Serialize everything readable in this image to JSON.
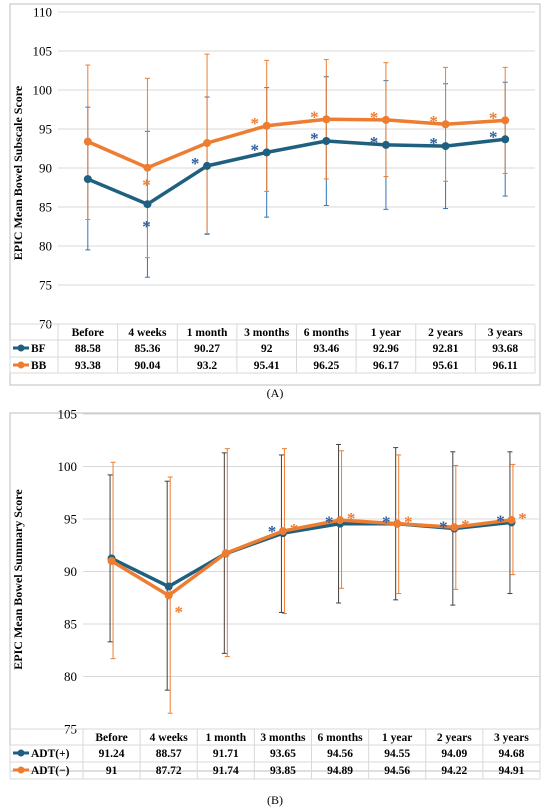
{
  "colors": {
    "series_a": "#1f5f7f",
    "series_b": "#ed7d31",
    "err_a": "#2e75b6",
    "err_a_b": "#404040",
    "err_b": "#ed7d31",
    "star_a": "#2e5f9e",
    "star_b": "#ed7d31"
  },
  "chart_data": [
    {
      "type": "line",
      "panel_label": "(A)",
      "ylabel": "EPIC Mean Bowel Subscale Score",
      "ylim": [
        70,
        110
      ],
      "yticks": [
        70,
        75,
        80,
        85,
        90,
        95,
        100,
        105,
        110
      ],
      "categories": [
        "Before",
        "4 weeks",
        "1 month",
        "3 months",
        "6 months",
        "1 year",
        "2 years",
        "3 years"
      ],
      "series": [
        {
          "name": "BF",
          "values": [
            88.58,
            85.36,
            90.27,
            92,
            93.46,
            92.96,
            92.81,
            93.68
          ],
          "labels": [
            "88.58",
            "85.36",
            "90.27",
            "92",
            "93.46",
            "92.96",
            "92.81",
            "93.68"
          ],
          "err_low": [
            79.5,
            76,
            81.5,
            83.7,
            85.2,
            84.7,
            84.8,
            86.4
          ],
          "err_high": [
            97.8,
            94.7,
            99.1,
            100.3,
            101.7,
            101.2,
            100.8,
            101
          ],
          "significant": [
            false,
            true,
            true,
            true,
            true,
            true,
            true,
            true
          ],
          "star_side": "left"
        },
        {
          "name": "BB",
          "values": [
            93.38,
            90.04,
            93.2,
            95.41,
            96.25,
            96.17,
            95.61,
            96.11
          ],
          "labels": [
            "93.38",
            "90.04",
            "93.2",
            "95.41",
            "96.25",
            "96.17",
            "95.61",
            "96.11"
          ],
          "err_low": [
            83.4,
            78.5,
            81.6,
            87,
            88.6,
            88.9,
            88.3,
            89.3
          ],
          "err_high": [
            103.2,
            101.5,
            104.6,
            103.8,
            103.9,
            103.5,
            102.9,
            102.9
          ],
          "significant": [
            false,
            true,
            false,
            true,
            true,
            true,
            true,
            true
          ],
          "star_side": "left"
        }
      ]
    },
    {
      "type": "line",
      "panel_label": "(B)",
      "ylabel": "EPIC Mean Bowel Summary Score",
      "ylim": [
        75,
        105
      ],
      "yticks": [
        75,
        80,
        85,
        90,
        95,
        100,
        105
      ],
      "categories": [
        "Before",
        "4 weeks",
        "1 month",
        "3 months",
        "6 months",
        "1 year",
        "2 years",
        "3 years"
      ],
      "series": [
        {
          "name": "ADT(+)",
          "values": [
            91.24,
            88.57,
            91.71,
            93.65,
            94.56,
            94.55,
            94.09,
            94.68
          ],
          "labels": [
            "91.24",
            "88.57",
            "91.71",
            "93.65",
            "94.56",
            "94.55",
            "94.09",
            "94.68"
          ],
          "err_low": [
            83.3,
            78.7,
            82.2,
            86.1,
            87,
            87.3,
            86.8,
            87.9
          ],
          "err_high": [
            99.2,
            98.6,
            101.3,
            101.1,
            102.1,
            101.8,
            101.4,
            101.4
          ],
          "significant": [
            false,
            false,
            false,
            true,
            true,
            true,
            true,
            true
          ],
          "star_side": "left"
        },
        {
          "name": "ADT(−)",
          "values": [
            91,
            87.72,
            91.74,
            93.85,
            94.89,
            94.56,
            94.22,
            94.91
          ],
          "labels": [
            "91",
            "87.72",
            "91.74",
            "93.85",
            "94.89",
            "94.56",
            "94.22",
            "94.91"
          ],
          "err_low": [
            81.7,
            76.5,
            81.9,
            86,
            88.4,
            87.9,
            88.3,
            89.7
          ],
          "err_high": [
            100.4,
            99,
            101.7,
            101.7,
            101.5,
            101.1,
            100.1,
            100.2
          ],
          "significant": [
            false,
            true,
            false,
            true,
            true,
            true,
            true,
            true
          ],
          "star_side": "right"
        }
      ]
    }
  ]
}
